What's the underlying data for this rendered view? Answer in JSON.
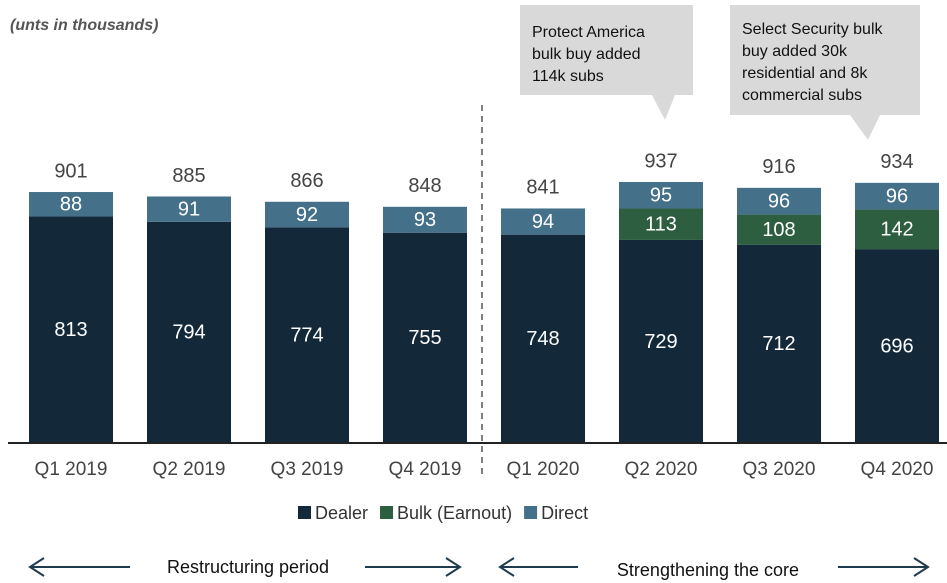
{
  "chart_data": {
    "type": "stacked-bar",
    "subtitle": "(unts in thousands)",
    "categories": [
      "Q1 2019",
      "Q2 2019",
      "Q3 2019",
      "Q4 2019",
      "Q1 2020",
      "Q2 2020",
      "Q3 2020",
      "Q4 2020"
    ],
    "series": [
      {
        "name": "Dealer",
        "color": "#13293a",
        "values": [
          813,
          794,
          774,
          755,
          748,
          729,
          712,
          696
        ]
      },
      {
        "name": "Bulk (Earnout)",
        "color": "#2d5e3f",
        "values": [
          null,
          null,
          null,
          null,
          null,
          113,
          108,
          142
        ]
      },
      {
        "name": "Direct",
        "color": "#45708a",
        "values": [
          88,
          91,
          92,
          93,
          94,
          95,
          96,
          96
        ]
      }
    ],
    "totals": [
      901,
      885,
      866,
      848,
      841,
      937,
      916,
      934
    ],
    "annotations": [
      {
        "lines": [
          "Protect America",
          "bulk buy added",
          "114k subs"
        ]
      },
      {
        "lines": [
          "Select Security bulk",
          "buy added 30k",
          "residential and 8k",
          "commercial subs"
        ]
      }
    ],
    "periods": [
      "Restructuring period",
      "Strengthening the core"
    ]
  }
}
